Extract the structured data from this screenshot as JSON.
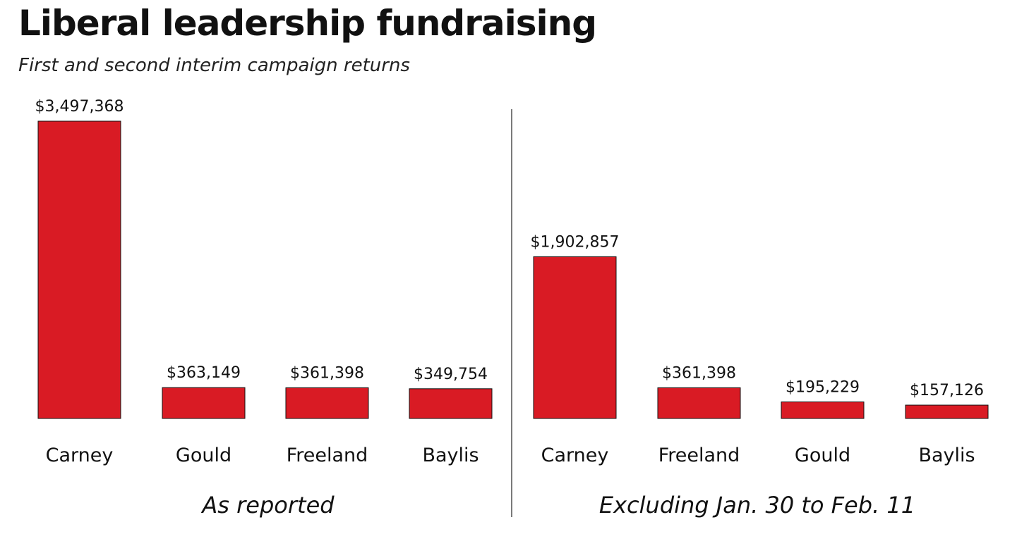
{
  "title": "Liberal leadership fundraising",
  "subtitle": "First and second interim campaign returns",
  "colors": {
    "bar": "#d91b24",
    "divider": "#222222"
  },
  "chart_data": [
    {
      "type": "bar",
      "panel_label": "As reported",
      "categories": [
        "Carney",
        "Gould",
        "Freeland",
        "Baylis"
      ],
      "values": [
        3497368,
        363149,
        361398,
        349754
      ],
      "value_labels": [
        "$3,497,368",
        "$363,149",
        "$361,398",
        "$349,754"
      ],
      "ylim": [
        0,
        3497368
      ],
      "grid": false
    },
    {
      "type": "bar",
      "panel_label": "Excluding Jan. 30 to Feb. 11",
      "categories": [
        "Carney",
        "Freeland",
        "Gould",
        "Baylis"
      ],
      "values": [
        1902857,
        361398,
        195229,
        157126
      ],
      "value_labels": [
        "$1,902,857",
        "$361,398",
        "$195,229",
        "$157,126"
      ],
      "ylim": [
        0,
        3497368
      ],
      "grid": false
    }
  ]
}
